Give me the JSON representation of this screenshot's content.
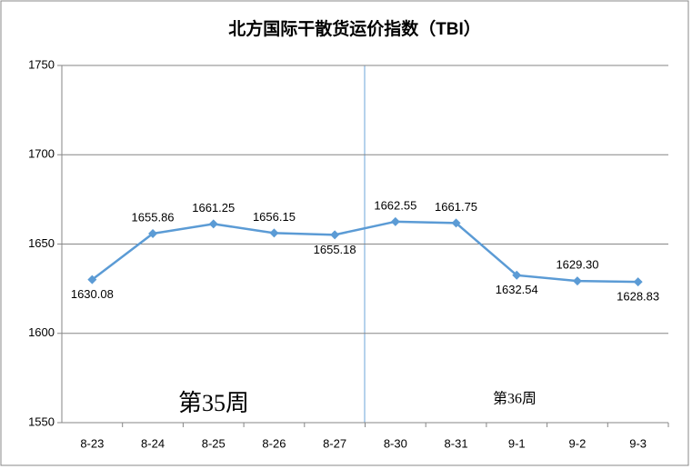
{
  "chart_data": {
    "type": "line",
    "title": "北方国际干散货运价指数（TBI）",
    "categories": [
      "8-23",
      "8-24",
      "8-25",
      "8-26",
      "8-27",
      "8-30",
      "8-31",
      "9-1",
      "9-2",
      "9-3"
    ],
    "series": [
      {
        "name": "TBI",
        "color": "#5b9bd5",
        "values": [
          1630.08,
          1655.86,
          1661.25,
          1656.15,
          1655.18,
          1662.55,
          1661.75,
          1632.54,
          1629.3,
          1628.83
        ],
        "value_labels": [
          "1630.08",
          "1655.86",
          "1661.25",
          "1656.15",
          "1655.18",
          "1662.55",
          "1661.75",
          "1632.54",
          "1629.30",
          "1628.83"
        ]
      }
    ],
    "ylim": [
      1550,
      1750
    ],
    "yticks": [
      1550,
      1600,
      1650,
      1700,
      1750
    ],
    "grid": true,
    "annotations": [
      "第35周",
      "第36周"
    ]
  }
}
